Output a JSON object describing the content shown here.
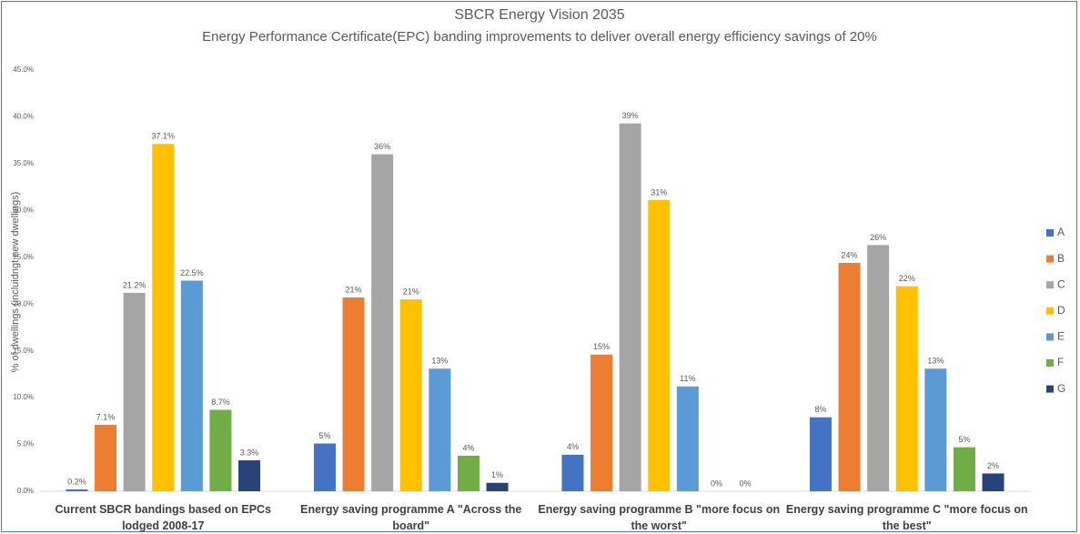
{
  "chart_data": {
    "type": "bar",
    "title": "SBCR Energy Vision 2035",
    "subtitle": "Energy Performance Certificate(EPC) banding improvements to deliver overall energy efficiency savings of 20%",
    "ylabel": "% of dwellings (incluidngt new dwellings)",
    "categories": [
      "Current SBCR bandings based on EPCs lodged 2008-17",
      "Energy saving programme A \"Across the board\"",
      "Energy saving programme B \"more focus on the worst\"",
      "Energy saving programme C \"more focus on the best\""
    ],
    "series": [
      {
        "name": "A",
        "color": "#4472c4",
        "values": [
          0.2,
          5.1,
          3.9,
          7.9
        ],
        "value_labels": [
          "0.2%",
          "5%",
          "4%",
          "8%"
        ]
      },
      {
        "name": "B",
        "color": "#ed7d31",
        "values": [
          7.1,
          20.7,
          14.6,
          24.4
        ],
        "value_labels": [
          "7.1%",
          "21%",
          "15%",
          "24%"
        ]
      },
      {
        "name": "C",
        "color": "#a5a5a5",
        "values": [
          21.2,
          36.0,
          39.3,
          26.3
        ],
        "value_labels": [
          "21.2%",
          "36%",
          "39%",
          "26%"
        ]
      },
      {
        "name": "D",
        "color": "#ffc000",
        "values": [
          37.1,
          20.5,
          31.1,
          21.9
        ],
        "value_labels": [
          "37.1%",
          "21%",
          "31%",
          "22%"
        ]
      },
      {
        "name": "E",
        "color": "#5b9bd5",
        "values": [
          22.5,
          13.1,
          11.2,
          13.1
        ],
        "value_labels": [
          "22.5%",
          "13%",
          "11%",
          "13%"
        ]
      },
      {
        "name": "F",
        "color": "#70ad47",
        "values": [
          8.7,
          3.8,
          0,
          4.7
        ],
        "value_labels": [
          "8.7%",
          "4%",
          "0%",
          "5%"
        ]
      },
      {
        "name": "G",
        "color": "#264478",
        "values": [
          3.3,
          0.9,
          0,
          1.9
        ],
        "value_labels": [
          "3.3%",
          "1%",
          "0%",
          "2%"
        ]
      }
    ],
    "ylim": [
      0,
      45
    ],
    "yticks": [
      {
        "value": 0,
        "label": "0.0%"
      },
      {
        "value": 5,
        "label": "5.0%"
      },
      {
        "value": 10,
        "label": "10.0%"
      },
      {
        "value": 15,
        "label": "15.0%"
      },
      {
        "value": 20,
        "label": "20.0%"
      },
      {
        "value": 25,
        "label": "25.0%"
      },
      {
        "value": 30,
        "label": "30.0%"
      },
      {
        "value": 35,
        "label": "35.0%"
      },
      {
        "value": 40,
        "label": "40.0%"
      },
      {
        "value": 45,
        "label": "45.0%"
      }
    ],
    "grid": false,
    "legend": "right"
  }
}
